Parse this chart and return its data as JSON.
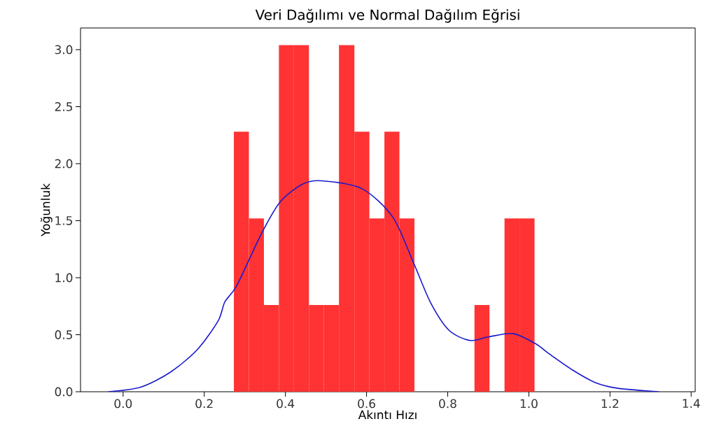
{
  "chart_data": {
    "type": "histogram",
    "title": "Veri Dağılımı ve Normal Dağılım Eğrisi",
    "xlabel": "Akıntı Hızı",
    "ylabel": "Yoğunluk",
    "bins": [
      0.273,
      0.31,
      0.347,
      0.384,
      0.421,
      0.458,
      0.495,
      0.532,
      0.57,
      0.607,
      0.644,
      0.681,
      0.718,
      0.866,
      0.903,
      0.94,
      0.977,
      1.014
    ],
    "values": [
      2.28,
      1.52,
      0.76,
      3.04,
      3.04,
      0.76,
      0.76,
      3.04,
      2.28,
      1.52,
      2.28,
      1.52,
      0,
      0.76,
      0,
      1.52,
      1.52
    ],
    "color": "#ff3333",
    "series": [
      {
        "type": "line",
        "color": "#1a1acd",
        "x": [
          -0.037,
          0.043,
          0.116,
          0.183,
          0.234,
          0.251,
          0.28,
          0.34,
          0.386,
          0.442,
          0.49,
          0.589,
          0.665,
          0.717,
          0.758,
          0.803,
          0.854,
          0.899,
          0.961,
          1.017,
          1.051,
          1.108,
          1.164,
          1.22,
          1.321
        ],
        "values": [
          0.0,
          0.04,
          0.17,
          0.37,
          0.62,
          0.79,
          0.93,
          1.38,
          1.66,
          1.82,
          1.85,
          1.78,
          1.53,
          1.12,
          0.78,
          0.54,
          0.45,
          0.48,
          0.51,
          0.42,
          0.33,
          0.19,
          0.08,
          0.03,
          0.0
        ]
      }
    ],
    "xlim": [
      -0.105,
      1.41
    ],
    "ylim": [
      0,
      3.19
    ],
    "xticks": [
      {
        "value": 0,
        "label": "0.0"
      },
      {
        "value": 0.2,
        "label": "0.2"
      },
      {
        "value": 0.4,
        "label": "0.4"
      },
      {
        "value": 0.6,
        "label": "0.6"
      },
      {
        "value": 0.8,
        "label": "0.8"
      },
      {
        "value": 1,
        "label": "1.0"
      },
      {
        "value": 1.2,
        "label": "1.2"
      },
      {
        "value": 1.4,
        "label": "1.4"
      }
    ],
    "yticks": [
      {
        "value": 0,
        "label": "0.0"
      },
      {
        "value": 0.5,
        "label": "0.5"
      },
      {
        "value": 1,
        "label": "1.0"
      },
      {
        "value": 1.5,
        "label": "1.5"
      },
      {
        "value": 2,
        "label": "2.0"
      },
      {
        "value": 2.5,
        "label": "2.5"
      },
      {
        "value": 3,
        "label": "3.0"
      }
    ]
  }
}
